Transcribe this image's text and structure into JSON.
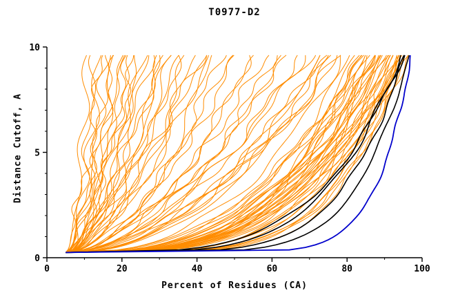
{
  "chart_data": {
    "type": "line",
    "title": "T0977-D2",
    "xlabel": "Percent of Residues (CA)",
    "ylabel": "Distance Cutoff, A",
    "xlim": [
      0,
      100
    ],
    "ylim": [
      0,
      10
    ],
    "x_ticks": [
      0,
      20,
      40,
      60,
      80,
      100
    ],
    "x_minor_step": 10,
    "y_ticks": [
      0,
      5,
      10
    ],
    "y_minor_step": 1,
    "axis_color": "#000000",
    "background": "#ffffff",
    "curve_params_format": [
      "x_start",
      "x_end",
      "shape_exponent",
      "wiggle",
      "seed"
    ],
    "series_groups": [
      {
        "name": "predicted-models",
        "color": "#FF8C00",
        "line_width": 1,
        "curves": [
          [
            5,
            11,
            0.5,
            1.5,
            1
          ],
          [
            6,
            13,
            0.6,
            1.8,
            2
          ],
          [
            5,
            14,
            0.45,
            1.8,
            3
          ],
          [
            6,
            16,
            0.55,
            2,
            4
          ],
          [
            5,
            17,
            0.6,
            1.5,
            5
          ],
          [
            7,
            18,
            0.5,
            2,
            6
          ],
          [
            5,
            20,
            0.55,
            2,
            7
          ],
          [
            6,
            21,
            0.6,
            1.5,
            8
          ],
          [
            5,
            22,
            0.5,
            2,
            9
          ],
          [
            6,
            24,
            0.65,
            2,
            10
          ],
          [
            5,
            25,
            0.5,
            1.5,
            11
          ],
          [
            7,
            26,
            0.6,
            2,
            12
          ],
          [
            5,
            28,
            0.55,
            2,
            13
          ],
          [
            6,
            30,
            0.6,
            2,
            14
          ],
          [
            5,
            31,
            0.5,
            1.5,
            15
          ],
          [
            6,
            33,
            0.65,
            2,
            16
          ],
          [
            5,
            34,
            0.55,
            2,
            17
          ],
          [
            7,
            36,
            0.6,
            2,
            18
          ],
          [
            5,
            38,
            0.5,
            2,
            19
          ],
          [
            6,
            40,
            0.6,
            2,
            20
          ],
          [
            5,
            42,
            0.55,
            1.8,
            21
          ],
          [
            6,
            44,
            0.6,
            2,
            22
          ],
          [
            7,
            45,
            0.5,
            2,
            23
          ],
          [
            5,
            15,
            0.7,
            2,
            24
          ],
          [
            6,
            19,
            0.75,
            2,
            25
          ],
          [
            5,
            23,
            0.7,
            1.5,
            26
          ],
          [
            6,
            27,
            0.8,
            2,
            27
          ],
          [
            5,
            32,
            0.75,
            2,
            28
          ],
          [
            6,
            37,
            0.7,
            2,
            29
          ],
          [
            5,
            43,
            0.8,
            2,
            30
          ],
          [
            5,
            47,
            0.5,
            2,
            31
          ],
          [
            6,
            50,
            0.55,
            2,
            32
          ],
          [
            5,
            52,
            0.6,
            2,
            33
          ],
          [
            6,
            55,
            0.5,
            2,
            34
          ],
          [
            5,
            57,
            0.55,
            2,
            35
          ],
          [
            6,
            60,
            0.6,
            2,
            36
          ],
          [
            5,
            62,
            0.5,
            2,
            37
          ],
          [
            6,
            64,
            0.55,
            2,
            38
          ],
          [
            5,
            66,
            0.6,
            2,
            39
          ],
          [
            6,
            68,
            0.5,
            2,
            40
          ],
          [
            5,
            70,
            0.55,
            2,
            41
          ],
          [
            6,
            72,
            0.6,
            2,
            42
          ],
          [
            5,
            74,
            0.45,
            2,
            43
          ],
          [
            6,
            75,
            0.5,
            2,
            44
          ],
          [
            5,
            76,
            0.55,
            2,
            45
          ],
          [
            6,
            77,
            0.5,
            2,
            46
          ],
          [
            5,
            78,
            0.45,
            2,
            47
          ],
          [
            6,
            79,
            0.5,
            2,
            48
          ],
          [
            5,
            80,
            0.55,
            2,
            49
          ],
          [
            6,
            80,
            0.4,
            2,
            50
          ],
          [
            5,
            82,
            0.35,
            1.5,
            51
          ],
          [
            6,
            83,
            0.3,
            1.5,
            52
          ],
          [
            5,
            84,
            0.35,
            1.5,
            53
          ],
          [
            6,
            85,
            0.3,
            1.5,
            54
          ],
          [
            5,
            85,
            0.4,
            1.5,
            55
          ],
          [
            6,
            86,
            0.35,
            1.5,
            56
          ],
          [
            5,
            87,
            0.3,
            1.5,
            57
          ],
          [
            6,
            87,
            0.4,
            1.5,
            58
          ],
          [
            5,
            88,
            0.35,
            1.5,
            59
          ],
          [
            6,
            88,
            0.28,
            1.5,
            60
          ],
          [
            5,
            89,
            0.32,
            1.5,
            61
          ],
          [
            6,
            89,
            0.38,
            1.5,
            62
          ],
          [
            5,
            90,
            0.3,
            1.5,
            63
          ],
          [
            6,
            90,
            0.35,
            1.2,
            64
          ],
          [
            5,
            91,
            0.28,
            1.2,
            65
          ],
          [
            6,
            91,
            0.33,
            1.2,
            66
          ],
          [
            5,
            92,
            0.3,
            1.2,
            67
          ],
          [
            6,
            92,
            0.36,
            1.2,
            68
          ],
          [
            5,
            93,
            0.28,
            1.2,
            69
          ],
          [
            6,
            93,
            0.32,
            1.2,
            70
          ],
          [
            5,
            94,
            0.3,
            1.2,
            71
          ],
          [
            6,
            94,
            0.25,
            1.2,
            72
          ],
          [
            5,
            95,
            0.28,
            1.2,
            73
          ],
          [
            6,
            95,
            0.33,
            1.2,
            74
          ],
          [
            5,
            96,
            0.3,
            1,
            75
          ],
          [
            6,
            96,
            0.25,
            1,
            76
          ],
          [
            5,
            96,
            0.35,
            1,
            77
          ],
          [
            6,
            97,
            0.28,
            1,
            78
          ],
          [
            5,
            97,
            0.32,
            1,
            79
          ],
          [
            6,
            97,
            0.22,
            1,
            80
          ],
          [
            5,
            90,
            0.2,
            1.2,
            81
          ],
          [
            6,
            92,
            0.18,
            1.2,
            82
          ],
          [
            5,
            94,
            0.2,
            1,
            83
          ],
          [
            6,
            95,
            0.18,
            1,
            84
          ],
          [
            5,
            96,
            0.2,
            1,
            85
          ],
          [
            6,
            88,
            0.22,
            1.5,
            86
          ],
          [
            5,
            86,
            0.25,
            1.5,
            87
          ],
          [
            6,
            84,
            0.28,
            1.5,
            88
          ]
        ]
      },
      {
        "name": "highlighted-models-black",
        "color": "#000000",
        "line_width": 1.6,
        "curves": [
          [
            5,
            95,
            0.22,
            0.8,
            91
          ],
          [
            5,
            96,
            0.18,
            0.6,
            92
          ],
          [
            5,
            96,
            0.25,
            0.8,
            93
          ],
          [
            5,
            97,
            0.15,
            0.5,
            94
          ]
        ]
      },
      {
        "name": "best-model-blue",
        "color": "#0000CC",
        "line_width": 1.8,
        "curves": [
          [
            5,
            97.5,
            0.1,
            0.4,
            95
          ]
        ]
      }
    ]
  }
}
